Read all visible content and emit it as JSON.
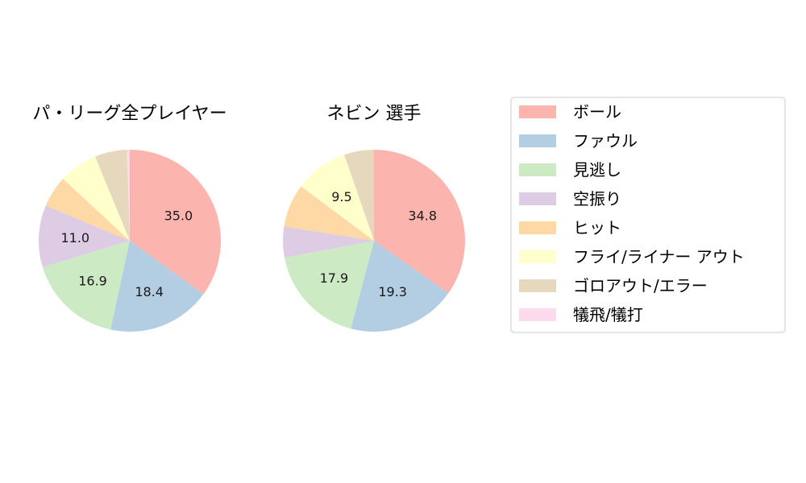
{
  "chart_data": [
    {
      "type": "pie",
      "title": "パ・リーグ全プレイヤー",
      "categories": [
        "ボール",
        "ファウル",
        "見逃し",
        "空振り",
        "ヒット",
        "フライ/ライナー アウト",
        "ゴロアウト/エラー",
        "犠飛/犠打"
      ],
      "values": [
        35.0,
        18.4,
        16.9,
        11.0,
        5.6,
        6.9,
        5.7,
        0.5
      ],
      "labels": [
        "35.0",
        "18.4",
        "16.9",
        "11.0",
        "",
        "",
        "",
        ""
      ]
    },
    {
      "type": "pie",
      "title": "ネビン  選手",
      "categories": [
        "ボール",
        "ファウル",
        "見逃し",
        "空振り",
        "ヒット",
        "フライ/ライナー アウト",
        "ゴロアウト/エラー",
        "犠飛/犠打"
      ],
      "values": [
        34.8,
        19.3,
        17.9,
        5.5,
        7.7,
        9.5,
        5.3,
        0.0
      ],
      "labels": [
        "34.8",
        "19.3",
        "17.9",
        "",
        "",
        "9.5",
        "",
        ""
      ]
    }
  ],
  "legend": {
    "position": "right",
    "items": [
      {
        "label": "ボール",
        "color": "#fbb4ae"
      },
      {
        "label": "ファウル",
        "color": "#b3cde3"
      },
      {
        "label": "見逃し",
        "color": "#ccebc5"
      },
      {
        "label": "空振り",
        "color": "#decbe4"
      },
      {
        "label": "ヒット",
        "color": "#fed9a6"
      },
      {
        "label": "フライ/ライナー アウト",
        "color": "#ffffcc"
      },
      {
        "label": "ゴロアウト/エラー",
        "color": "#e5d8bd"
      },
      {
        "label": "犠飛/犠打",
        "color": "#fddaec"
      }
    ]
  }
}
